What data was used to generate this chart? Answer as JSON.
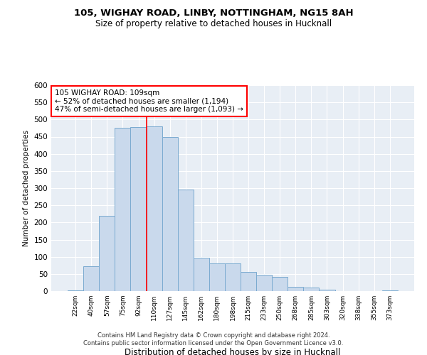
{
  "title1": "105, WIGHAY ROAD, LINBY, NOTTINGHAM, NG15 8AH",
  "title2": "Size of property relative to detached houses in Hucknall",
  "xlabel": "Distribution of detached houses by size in Hucknall",
  "ylabel": "Number of detached properties",
  "categories": [
    "22sqm",
    "40sqm",
    "57sqm",
    "75sqm",
    "92sqm",
    "110sqm",
    "127sqm",
    "145sqm",
    "162sqm",
    "180sqm",
    "198sqm",
    "215sqm",
    "233sqm",
    "250sqm",
    "268sqm",
    "285sqm",
    "303sqm",
    "320sqm",
    "338sqm",
    "355sqm",
    "373sqm"
  ],
  "values": [
    3,
    72,
    220,
    475,
    478,
    480,
    450,
    295,
    97,
    80,
    80,
    55,
    48,
    42,
    12,
    10,
    5,
    1,
    0,
    0,
    3
  ],
  "bar_color": "#c9d9ec",
  "bar_edge_color": "#7aaad0",
  "annotation_text": "105 WIGHAY ROAD: 109sqm\n← 52% of detached houses are smaller (1,194)\n47% of semi-detached houses are larger (1,093) →",
  "footer": "Contains HM Land Registry data © Crown copyright and database right 2024.\nContains public sector information licensed under the Open Government Licence v3.0.",
  "ylim": [
    0,
    600
  ],
  "yticks": [
    0,
    50,
    100,
    150,
    200,
    250,
    300,
    350,
    400,
    450,
    500,
    550,
    600
  ],
  "background_color": "#e8eef5",
  "grid_color": "#ffffff",
  "vline_pos": 4.5
}
